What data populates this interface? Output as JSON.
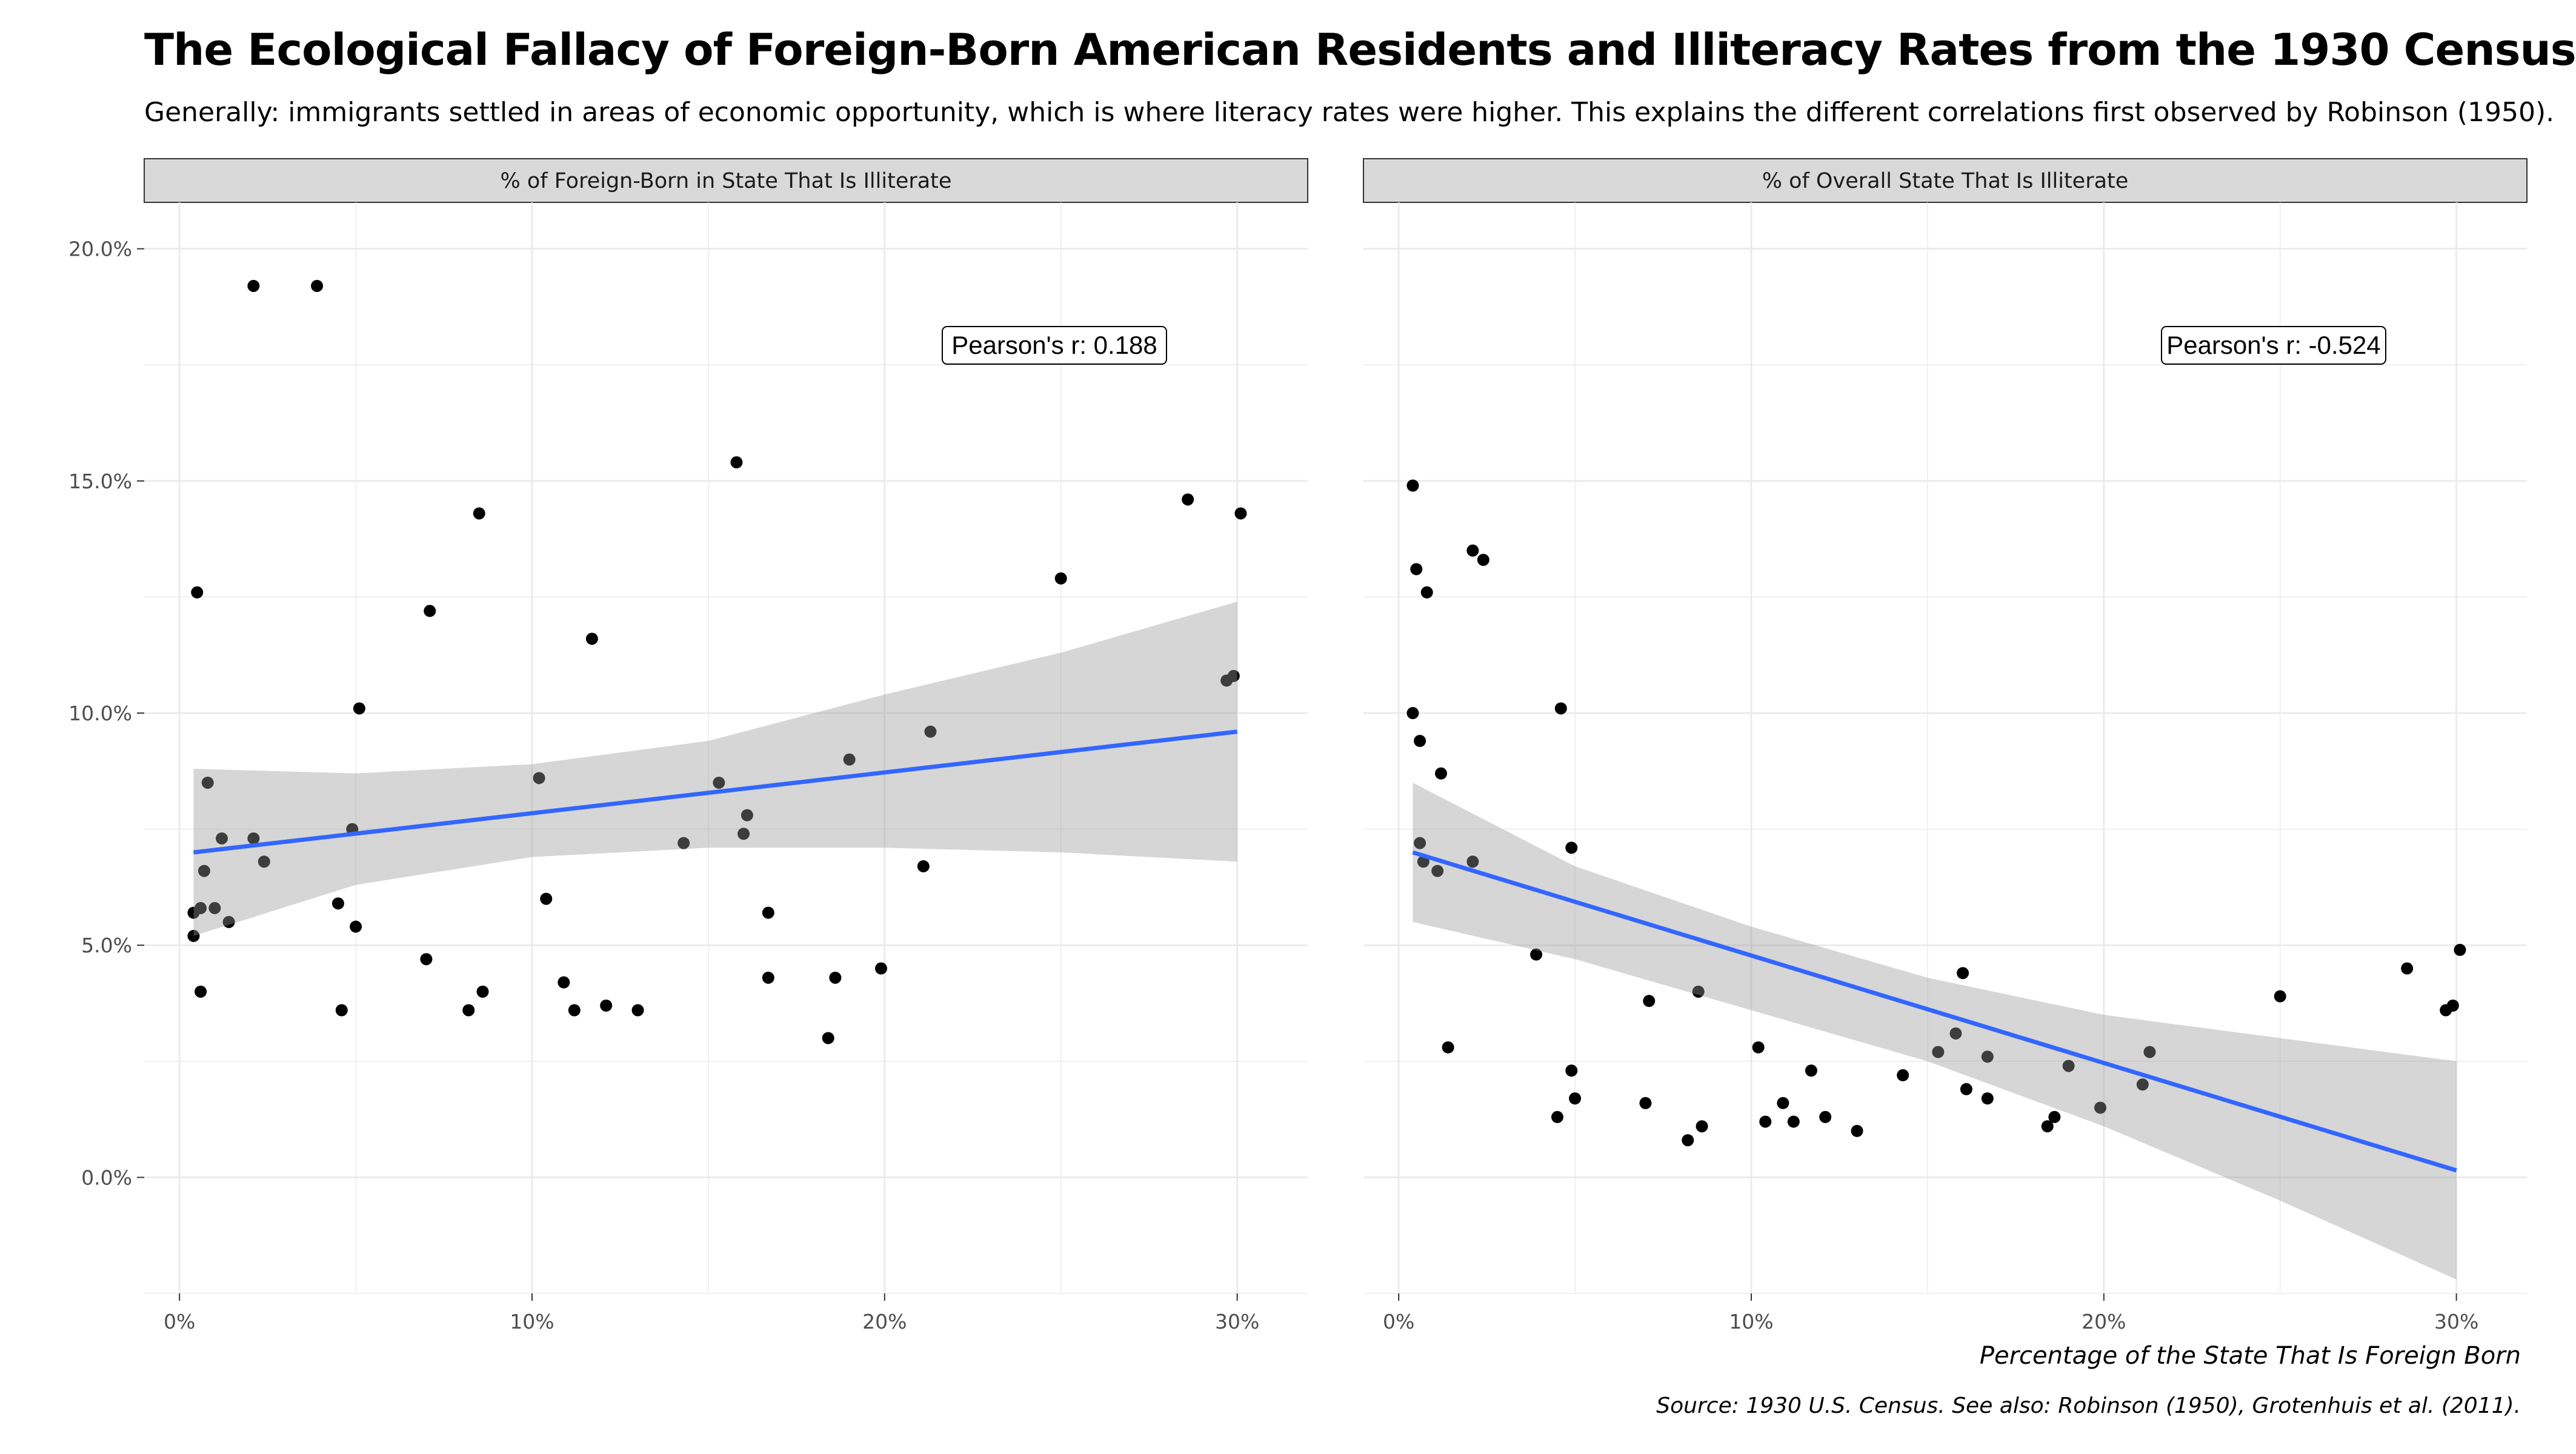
{
  "title": "The Ecological Fallacy of Foreign-Born American Residents and Illiteracy Rates from the 1930 Census",
  "subtitle": "Generally: immigrants settled in areas of economic opportunity, which is where literacy rates were higher. This explains the different correlations first observed by Robinson (1950).",
  "x_caption": "Percentage of the State That Is Foreign Born",
  "source_caption": "Source: 1930 U.S. Census. See also: Robinson (1950), Grotenhuis et al. (2011).",
  "colors": {
    "trend": "#3366FF",
    "ribbon": "#999999",
    "point": "#000000",
    "strip": "#D9D9D9",
    "grid": "#EBEBEB"
  },
  "chart_data": [
    {
      "type": "scatter",
      "panel": "% of Foreign-Born in State That Is Illiterate",
      "annotation": "Pearson's r: 0.188",
      "xlim": [
        -0.01,
        0.32
      ],
      "ylim": [
        -0.025,
        0.21
      ],
      "x_ticks": [
        0,
        0.1,
        0.2,
        0.3
      ],
      "x_tick_labels": [
        "0%",
        "10%",
        "20%",
        "30%"
      ],
      "y_ticks": [
        0,
        0.05,
        0.1,
        0.15,
        0.2
      ],
      "y_tick_labels": [
        "0.0%",
        "5.0%",
        "10.0%",
        "15.0%",
        "20.0%"
      ],
      "grid": true,
      "trend": {
        "x": [
          0.004,
          0.3
        ],
        "y": [
          0.07,
          0.096
        ]
      },
      "ribbon": {
        "x": [
          0.004,
          0.05,
          0.1,
          0.15,
          0.2,
          0.25,
          0.3
        ],
        "lower": [
          0.052,
          0.063,
          0.069,
          0.071,
          0.071,
          0.07,
          0.068
        ],
        "upper": [
          0.088,
          0.087,
          0.089,
          0.094,
          0.104,
          0.113,
          0.124
        ]
      },
      "points": [
        [
          0.004,
          0.052
        ],
        [
          0.004,
          0.057
        ],
        [
          0.005,
          0.126
        ],
        [
          0.006,
          0.058
        ],
        [
          0.006,
          0.04
        ],
        [
          0.007,
          0.066
        ],
        [
          0.008,
          0.085
        ],
        [
          0.01,
          0.058
        ],
        [
          0.012,
          0.073
        ],
        [
          0.014,
          0.055
        ],
        [
          0.021,
          0.192
        ],
        [
          0.021,
          0.073
        ],
        [
          0.024,
          0.068
        ],
        [
          0.039,
          0.192
        ],
        [
          0.045,
          0.059
        ],
        [
          0.046,
          0.036
        ],
        [
          0.049,
          0.075
        ],
        [
          0.05,
          0.054
        ],
        [
          0.051,
          0.101
        ],
        [
          0.07,
          0.047
        ],
        [
          0.071,
          0.122
        ],
        [
          0.082,
          0.036
        ],
        [
          0.085,
          0.143
        ],
        [
          0.086,
          0.04
        ],
        [
          0.102,
          0.086
        ],
        [
          0.104,
          0.06
        ],
        [
          0.109,
          0.042
        ],
        [
          0.112,
          0.036
        ],
        [
          0.117,
          0.116
        ],
        [
          0.121,
          0.037
        ],
        [
          0.13,
          0.036
        ],
        [
          0.143,
          0.072
        ],
        [
          0.153,
          0.085
        ],
        [
          0.158,
          0.154
        ],
        [
          0.16,
          0.074
        ],
        [
          0.161,
          0.078
        ],
        [
          0.167,
          0.057
        ],
        [
          0.167,
          0.043
        ],
        [
          0.184,
          0.03
        ],
        [
          0.186,
          0.043
        ],
        [
          0.19,
          0.09
        ],
        [
          0.199,
          0.045
        ],
        [
          0.211,
          0.067
        ],
        [
          0.213,
          0.096
        ],
        [
          0.25,
          0.129
        ],
        [
          0.286,
          0.146
        ],
        [
          0.297,
          0.107
        ],
        [
          0.299,
          0.108
        ],
        [
          0.301,
          0.143
        ]
      ]
    },
    {
      "type": "scatter",
      "panel": "% of Overall State That Is Illiterate",
      "annotation": "Pearson's r: -0.524",
      "xlim": [
        -0.01,
        0.32
      ],
      "ylim": [
        -0.025,
        0.21
      ],
      "x_ticks": [
        0,
        0.1,
        0.2,
        0.3
      ],
      "x_tick_labels": [
        "0%",
        "10%",
        "20%",
        "30%"
      ],
      "grid": true,
      "trend": {
        "x": [
          0.004,
          0.3
        ],
        "y": [
          0.07,
          0.0015
        ]
      },
      "ribbon": {
        "x": [
          0.004,
          0.05,
          0.1,
          0.15,
          0.2,
          0.25,
          0.3
        ],
        "lower": [
          0.055,
          0.047,
          0.036,
          0.025,
          0.011,
          -0.005,
          -0.022
        ],
        "upper": [
          0.085,
          0.067,
          0.054,
          0.043,
          0.035,
          0.03,
          0.025
        ]
      },
      "points": [
        [
          0.004,
          0.149
        ],
        [
          0.004,
          0.1
        ],
        [
          0.005,
          0.131
        ],
        [
          0.006,
          0.094
        ],
        [
          0.006,
          0.072
        ],
        [
          0.007,
          0.068
        ],
        [
          0.008,
          0.126
        ],
        [
          0.011,
          0.066
        ],
        [
          0.012,
          0.087
        ],
        [
          0.014,
          0.028
        ],
        [
          0.021,
          0.135
        ],
        [
          0.021,
          0.068
        ],
        [
          0.024,
          0.133
        ],
        [
          0.039,
          0.048
        ],
        [
          0.045,
          0.013
        ],
        [
          0.046,
          0.101
        ],
        [
          0.049,
          0.071
        ],
        [
          0.049,
          0.023
        ],
        [
          0.05,
          0.017
        ],
        [
          0.071,
          0.038
        ],
        [
          0.07,
          0.016
        ],
        [
          0.082,
          0.008
        ],
        [
          0.085,
          0.04
        ],
        [
          0.086,
          0.011
        ],
        [
          0.102,
          0.028
        ],
        [
          0.104,
          0.012
        ],
        [
          0.109,
          0.016
        ],
        [
          0.112,
          0.012
        ],
        [
          0.117,
          0.023
        ],
        [
          0.121,
          0.013
        ],
        [
          0.13,
          0.01
        ],
        [
          0.143,
          0.022
        ],
        [
          0.153,
          0.027
        ],
        [
          0.158,
          0.031
        ],
        [
          0.16,
          0.044
        ],
        [
          0.161,
          0.019
        ],
        [
          0.167,
          0.026
        ],
        [
          0.167,
          0.017
        ],
        [
          0.184,
          0.011
        ],
        [
          0.186,
          0.013
        ],
        [
          0.19,
          0.024
        ],
        [
          0.199,
          0.015
        ],
        [
          0.211,
          0.02
        ],
        [
          0.213,
          0.027
        ],
        [
          0.25,
          0.039
        ],
        [
          0.286,
          0.045
        ],
        [
          0.297,
          0.036
        ],
        [
          0.299,
          0.037
        ],
        [
          0.301,
          0.049
        ]
      ]
    }
  ]
}
